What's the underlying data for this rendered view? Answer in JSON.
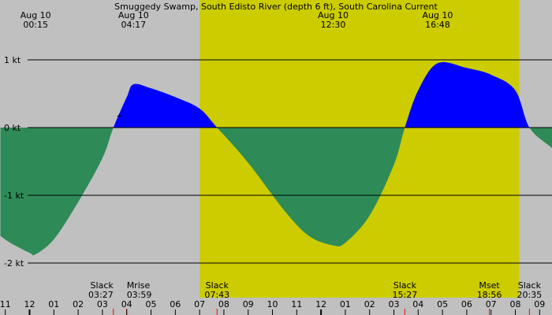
{
  "chart_data": {
    "type": "area",
    "title": "Smuggedy Swamp, South Edisto River (depth 6 ft), South Carolina Current",
    "y_unit": "kt",
    "ylim": [
      -2.2,
      1.85
    ],
    "xlim_hours": [
      -1.2,
      33.5
    ],
    "y_ticks": [
      {
        "value": 1,
        "label": "1 kt"
      },
      {
        "value": 0,
        "label": "0 kt"
      },
      {
        "value": -1,
        "label": "-1 kt"
      },
      {
        "value": -2,
        "label": "-2 kt"
      }
    ],
    "grid": "horizontal lines at y ticks",
    "daylight_hours": [
      7.0,
      20.15
    ],
    "colors": {
      "night": "#c0c0c0",
      "day": "#cccc00",
      "flood": "#0000ff",
      "ebb": "#2e8b57",
      "line": "#000000",
      "marker": "#ff0000"
    },
    "series": [
      {
        "hours": [
          -1.2,
          -0.8,
          0,
          0.25,
          1,
          2,
          3,
          3.45,
          4.0,
          4.28,
          5,
          6,
          7,
          7.72,
          9,
          10.5,
          11.5,
          12.5,
          13,
          14,
          15,
          15.45,
          16,
          16.8,
          18,
          19,
          20,
          20.58,
          21.5,
          22.5,
          23
        ],
        "values": [
          -1.6,
          -1.7,
          -1.85,
          -1.87,
          -1.65,
          -1.1,
          -0.45,
          0.0,
          0.45,
          0.64,
          0.58,
          0.45,
          0.28,
          0.0,
          -0.52,
          -1.23,
          -1.6,
          -1.74,
          -1.7,
          -1.3,
          -0.55,
          0.0,
          0.55,
          0.95,
          0.88,
          0.78,
          0.55,
          0.0,
          -0.3,
          -0.6,
          -0.75
        ]
      }
    ],
    "top_labels": [
      {
        "date": "Aug 10",
        "time": "00:15",
        "hour": 0.25
      },
      {
        "date": "Aug 10",
        "time": "04:17",
        "hour": 4.28
      },
      {
        "date": "Aug 10",
        "time": "12:30",
        "hour": 12.5
      },
      {
        "date": "Aug 10",
        "time": "16:48",
        "hour": 16.8
      }
    ],
    "bottom_events": [
      {
        "name": "Slack",
        "time": "03:27",
        "hour": 3.45,
        "anchor": "end"
      },
      {
        "name": "Mrise",
        "time": "03:59",
        "hour": 4.0,
        "anchor": "start"
      },
      {
        "name": "Slack",
        "time": "07:43",
        "hour": 7.72,
        "anchor": "middle"
      },
      {
        "name": "Slack",
        "time": "15:27",
        "hour": 15.45,
        "anchor": "middle"
      },
      {
        "name": "Mset",
        "time": "18:56",
        "hour": 18.93,
        "anchor": "middle"
      },
      {
        "name": "Slack",
        "time": "20:35",
        "hour": 20.58,
        "anchor": "middle"
      }
    ],
    "hour_ticks": [
      {
        "hour": -1,
        "label": "11"
      },
      {
        "hour": 0,
        "label": "12"
      },
      {
        "hour": 1,
        "label": "01"
      },
      {
        "hour": 2,
        "label": "02"
      },
      {
        "hour": 3,
        "label": "03"
      },
      {
        "hour": 4,
        "label": "04"
      },
      {
        "hour": 5,
        "label": "05"
      },
      {
        "hour": 6,
        "label": "06"
      },
      {
        "hour": 7,
        "label": "07"
      },
      {
        "hour": 8,
        "label": "08"
      },
      {
        "hour": 9,
        "label": "09"
      },
      {
        "hour": 10,
        "label": "10"
      },
      {
        "hour": 11,
        "label": "11"
      },
      {
        "hour": 12,
        "label": "12"
      },
      {
        "hour": 13,
        "label": "01"
      },
      {
        "hour": 14,
        "label": "02"
      },
      {
        "hour": 15,
        "label": "03"
      },
      {
        "hour": 16,
        "label": "04"
      },
      {
        "hour": 17,
        "label": "05"
      },
      {
        "hour": 18,
        "label": "06"
      },
      {
        "hour": 19,
        "label": "07"
      },
      {
        "hour": 20,
        "label": "08"
      },
      {
        "hour": 21,
        "label": "09"
      }
    ],
    "plus_marker": {
      "hour": 3.7,
      "value": 0.17
    }
  }
}
